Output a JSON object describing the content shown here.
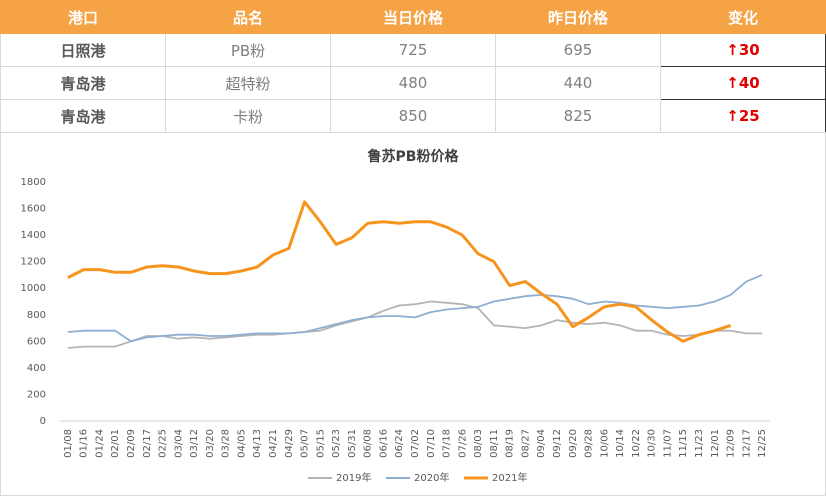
{
  "table": {
    "header": [
      "港口",
      "品名",
      "当日价格",
      "昨日价格",
      "变化"
    ],
    "rows": [
      [
        "日照港",
        "PB粉",
        "725",
        "695",
        "↑30"
      ],
      [
        "青岛港",
        "超特粉",
        "480",
        "440",
        "↑40"
      ],
      [
        "青岛港",
        "卡粉",
        "850",
        "825",
        "↑25"
      ]
    ]
  },
  "chart_data": {
    "type": "line",
    "title": "鲁苏PB粉价格",
    "categories": [
      "01/08",
      "01/16",
      "01/24",
      "02/01",
      "02/09",
      "02/17",
      "02/25",
      "03/04",
      "03/12",
      "03/20",
      "03/28",
      "04/05",
      "04/13",
      "04/21",
      "04/29",
      "05/07",
      "05/15",
      "05/23",
      "05/31",
      "06/08",
      "06/16",
      "06/24",
      "07/02",
      "07/10",
      "07/18",
      "07/26",
      "08/03",
      "08/11",
      "08/19",
      "08/27",
      "09/04",
      "09/12",
      "09/20",
      "09/28",
      "10/06",
      "10/14",
      "10/22",
      "10/30",
      "11/07",
      "11/15",
      "11/23",
      "12/01",
      "12/09",
      "12/17",
      "12/25"
    ],
    "series": [
      {
        "name": "2019年",
        "color": "#b4b4b4",
        "values": [
          550,
          560,
          560,
          560,
          600,
          640,
          640,
          620,
          630,
          620,
          630,
          640,
          650,
          650,
          660,
          670,
          680,
          720,
          750,
          780,
          830,
          870,
          880,
          900,
          890,
          880,
          850,
          720,
          710,
          700,
          720,
          760,
          740,
          730,
          740,
          720,
          680,
          680,
          650,
          640,
          650,
          680,
          680,
          660,
          660
        ]
      },
      {
        "name": "2020年",
        "color": "#8eaed4",
        "values": [
          670,
          680,
          680,
          680,
          600,
          630,
          640,
          650,
          650,
          640,
          640,
          650,
          660,
          660,
          660,
          670,
          700,
          730,
          760,
          780,
          790,
          790,
          780,
          820,
          840,
          850,
          860,
          900,
          920,
          940,
          950,
          940,
          920,
          880,
          900,
          890,
          870,
          860,
          850,
          860,
          870,
          900,
          950,
          1050,
          1100
        ]
      },
      {
        "name": "2021年",
        "color": "#f7941d",
        "values": [
          1080,
          1140,
          1140,
          1120,
          1120,
          1160,
          1170,
          1160,
          1130,
          1110,
          1110,
          1130,
          1160,
          1250,
          1300,
          1650,
          1500,
          1330,
          1380,
          1490,
          1500,
          1490,
          1500,
          1500,
          1460,
          1400,
          1260,
          1200,
          1020,
          1050,
          960,
          880,
          710,
          780,
          860,
          880,
          860,
          760,
          670,
          600,
          650,
          680,
          720,
          null,
          null
        ]
      }
    ],
    "ylim": [
      0,
      1800
    ],
    "yticks": [
      0,
      200,
      400,
      600,
      800,
      1000,
      1200,
      1400,
      1600,
      1800
    ],
    "grid": false,
    "legend": "bottom"
  }
}
